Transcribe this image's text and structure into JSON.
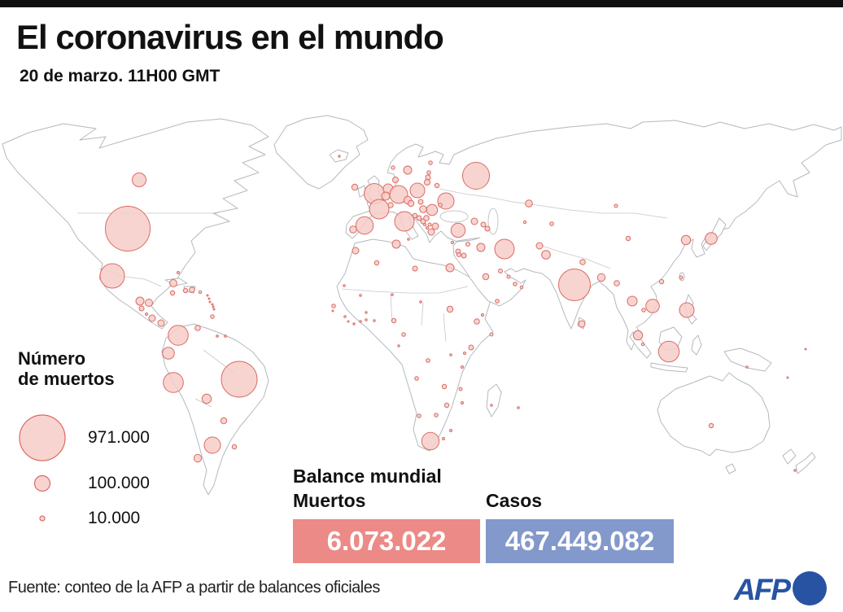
{
  "meta": {
    "bg": "#ffffff",
    "top_bar_color": "#111111",
    "bubble_fill": "#f7cdc9",
    "bubble_stroke": "#da6b61",
    "map_stroke": "#b4b9be",
    "deaths_box_color": "#eb8a87",
    "cases_box_color": "#8398cb",
    "afp_blue": "#2853a3"
  },
  "header": {
    "title": "El coronavirus en el mundo",
    "subtitle": "20 de marzo. 11H00 GMT"
  },
  "legend": {
    "title_line1": "Número",
    "title_line2": "de muertos",
    "items": [
      {
        "label": "971.000",
        "r": 28
      },
      {
        "label": "100.000",
        "r": 9.5
      },
      {
        "label": "10.000",
        "r": 3
      }
    ]
  },
  "balance": {
    "title": "Balance mundial",
    "deaths_label": "Muertos",
    "cases_label": "Casos",
    "deaths_value": "6.073.022",
    "cases_value": "467.449.082"
  },
  "footer": {
    "source": "Fuente: conteo de la AFP a partir de balances oficiales",
    "logo_text": "AFP"
  },
  "chart_data": {
    "type": "scatter",
    "subtype": "proportional-symbol-world-map",
    "title": "El coronavirus en el mundo",
    "subtitle": "20 de marzo. 11H00 GMT",
    "size_legend": {
      "title": "Número de muertos",
      "entries": [
        {
          "value": 971000,
          "label": "971.000",
          "radius_px": 28
        },
        {
          "value": 100000,
          "label": "100.000",
          "radius_px": 9.5
        },
        {
          "value": 10000,
          "label": "10.000",
          "radius_px": 3
        }
      ]
    },
    "totals": {
      "deaths": "6.073.022",
      "cases": "467.449.082"
    },
    "points_columns": [
      "country",
      "x_px",
      "y_px",
      "radius_px"
    ],
    "points": [
      [
        "canada",
        171,
        221,
        8.5
      ],
      [
        "usa",
        157,
        281,
        27.5
      ],
      [
        "mexico",
        138,
        339,
        15
      ],
      [
        "guatemala",
        172,
        370,
        5
      ],
      [
        "honduras",
        183,
        372,
        4.5
      ],
      [
        "el-salvador",
        174,
        379,
        3
      ],
      [
        "nicaragua",
        180,
        386,
        1.5
      ],
      [
        "costa-rica",
        187,
        391,
        4
      ],
      [
        "panama",
        198,
        397,
        4
      ],
      [
        "bahamas",
        219,
        335,
        1.5
      ],
      [
        "cuba",
        213,
        348,
        4.5
      ],
      [
        "jamaica",
        212,
        360,
        2.7
      ],
      [
        "haiti",
        228,
        357,
        2.7
      ],
      [
        "dominican-republic",
        236,
        356,
        3.3
      ],
      [
        "puerto-rico",
        246,
        359,
        1.7
      ],
      [
        "antilles-1",
        255,
        363,
        1
      ],
      [
        "antilles-2",
        257,
        367,
        1
      ],
      [
        "antilles-3",
        258,
        371,
        1
      ],
      [
        "antilles-4",
        261,
        374,
        1
      ],
      [
        "antilles-5",
        262,
        377,
        1
      ],
      [
        "antilles-6",
        263,
        380,
        1
      ],
      [
        "trinidad-tobago",
        261,
        389,
        2.3
      ],
      [
        "venezuela",
        243,
        403,
        3.3
      ],
      [
        "colombia",
        219,
        412,
        12.3
      ],
      [
        "guyana",
        267,
        413,
        1.4
      ],
      [
        "suriname",
        277,
        413,
        1.4
      ],
      [
        "ecuador",
        207,
        434,
        7.3
      ],
      [
        "peru",
        213,
        470,
        12.3
      ],
      [
        "brazil",
        294,
        466,
        22
      ],
      [
        "bolivia",
        254,
        490,
        5.7
      ],
      [
        "paraguay",
        275,
        517,
        3.7
      ],
      [
        "argentina",
        261,
        547,
        10
      ],
      [
        "uruguay",
        288,
        549,
        2.7
      ],
      [
        "chile",
        243,
        563,
        4.7
      ],
      [
        "iceland",
        417,
        192,
        1.2
      ],
      [
        "ireland",
        436,
        230,
        3.7
      ],
      [
        "united-kingdom",
        460,
        238,
        12.5
      ],
      [
        "norway",
        483,
        206,
        2.2
      ],
      [
        "sweden",
        501,
        209,
        5
      ],
      [
        "finland",
        529,
        200,
        2.3
      ],
      [
        "estonia",
        527,
        212,
        2.3
      ],
      [
        "latvia",
        526,
        218,
        3
      ],
      [
        "lithuania",
        525,
        224,
        3.5
      ],
      [
        "denmark",
        486,
        221,
        3.5
      ],
      [
        "netherlands",
        477,
        232,
        6
      ],
      [
        "belgium",
        474,
        241,
        5
      ],
      [
        "germany",
        490,
        239,
        11
      ],
      [
        "poland",
        513,
        234,
        9
      ],
      [
        "belarus",
        537,
        228,
        2.7
      ],
      [
        "russia",
        585,
        216,
        16.5
      ],
      [
        "ukraine",
        548,
        247,
        10
      ],
      [
        "czechia",
        501,
        246,
        4.7
      ],
      [
        "slovakia",
        517,
        248,
        3
      ],
      [
        "austria",
        505,
        250,
        3.7
      ],
      [
        "switzerland",
        480,
        252,
        3.3
      ],
      [
        "france",
        466,
        257,
        12
      ],
      [
        "hungary",
        520,
        257,
        4.3
      ],
      [
        "moldova",
        541,
        252,
        2.3
      ],
      [
        "romania",
        531,
        258,
        6.7
      ],
      [
        "slovenia",
        510,
        265,
        2.7
      ],
      [
        "croatia",
        515,
        268,
        3
      ],
      [
        "bosnia",
        520,
        272,
        3
      ],
      [
        "serbia",
        524,
        268,
        3.3
      ],
      [
        "italy",
        497,
        272,
        12
      ],
      [
        "spain",
        448,
        277,
        10.7
      ],
      [
        "portugal",
        434,
        282,
        4.3
      ],
      [
        "montenegro",
        522,
        276,
        1.5
      ],
      [
        "north-macedonia",
        528,
        276,
        2
      ],
      [
        "albania",
        525,
        280,
        1.5
      ],
      [
        "bulgaria",
        535,
        278,
        4
      ],
      [
        "greece",
        530,
        285,
        4
      ],
      [
        "malta",
        502,
        294,
        1.3
      ],
      [
        "morocco",
        437,
        308,
        4
      ],
      [
        "algeria",
        463,
        323,
        2.7
      ],
      [
        "tunisia",
        487,
        300,
        5
      ],
      [
        "libya",
        510,
        330,
        3
      ],
      [
        "egypt",
        553,
        329,
        5
      ],
      [
        "turkey",
        563,
        283,
        8.7
      ],
      [
        "cyprus",
        556,
        298,
        1.5
      ],
      [
        "syria",
        575,
        300,
        2.5
      ],
      [
        "lebanon",
        563,
        309,
        3
      ],
      [
        "israel",
        564,
        313,
        2.5
      ],
      [
        "jordan",
        570,
        314,
        3
      ],
      [
        "iraq",
        591,
        304,
        5
      ],
      [
        "georgia",
        583,
        272,
        4
      ],
      [
        "armenia",
        594,
        276,
        3
      ],
      [
        "azerbaijan",
        599,
        281,
        3
      ],
      [
        "iran",
        620,
        306,
        12
      ],
      [
        "kuwait",
        615,
        333,
        2.5
      ],
      [
        "saudi-arabia",
        597,
        340,
        3.7
      ],
      [
        "bahrain",
        625,
        340,
        2
      ],
      [
        "uae",
        633,
        349,
        2.3
      ],
      [
        "oman",
        641,
        353,
        1.8
      ],
      [
        "yemen",
        611,
        370,
        2.3
      ],
      [
        "kazakhstan",
        650,
        250,
        4.3
      ],
      [
        "uzbekistan",
        645,
        273,
        1.7
      ],
      [
        "kyrgyzstan",
        678,
        275,
        2.3
      ],
      [
        "mongolia",
        757,
        253,
        2
      ],
      [
        "china",
        772,
        293,
        2.7
      ],
      [
        "afghanistan",
        663,
        302,
        4
      ],
      [
        "pakistan",
        671,
        313,
        5.3
      ],
      [
        "nepal",
        716,
        322,
        3.3
      ],
      [
        "india",
        706,
        350,
        19.5
      ],
      [
        "bangladesh",
        739,
        341,
        4.7
      ],
      [
        "myanmar",
        758,
        348,
        3.3
      ],
      [
        "sri-lanka",
        715,
        398,
        4
      ],
      [
        "thailand",
        777,
        370,
        6
      ],
      [
        "vietnam",
        802,
        376,
        8.3
      ],
      [
        "cambodia",
        791,
        381,
        2.3
      ],
      [
        "south-korea",
        843,
        295,
        5.7
      ],
      [
        "japan",
        874,
        293,
        7.3
      ],
      [
        "taiwan",
        837,
        341,
        2
      ],
      [
        "hong-kong",
        813,
        346,
        2.7
      ],
      [
        "philippines",
        844,
        381,
        9
      ],
      [
        "malaysia",
        784,
        412,
        5.7
      ],
      [
        "singapore",
        790,
        423,
        1.7
      ],
      [
        "indonesia",
        822,
        432,
        12.7
      ],
      [
        "papua-new-guinea",
        918,
        451,
        1.3
      ],
      [
        "solomon-islands",
        968,
        464,
        1
      ],
      [
        "fiji",
        990,
        429,
        1
      ],
      [
        "australia",
        874,
        523,
        2.7
      ],
      [
        "new-zealand",
        977,
        578,
        1.3
      ],
      [
        "mauritania",
        423,
        351,
        1.3
      ],
      [
        "senegal",
        410,
        376,
        2.3
      ],
      [
        "gambia",
        409,
        382,
        1
      ],
      [
        "guinea",
        424,
        389,
        1.3
      ],
      [
        "sierra-leone",
        428,
        395,
        1
      ],
      [
        "liberia",
        435,
        398,
        1.2
      ],
      [
        "ivory-coast",
        443,
        395,
        1.3
      ],
      [
        "ghana",
        450,
        393,
        1.3
      ],
      [
        "burkina-faso",
        450,
        384,
        1.2
      ],
      [
        "togo-benin",
        460,
        394,
        1.2
      ],
      [
        "mali",
        443,
        363,
        1.3
      ],
      [
        "niger",
        482,
        362,
        1.3
      ],
      [
        "chad",
        517,
        371,
        1.3
      ],
      [
        "nigeria",
        484,
        394,
        2.7
      ],
      [
        "cameroon",
        496,
        411,
        2.3
      ],
      [
        "gabon",
        490,
        425,
        1.2
      ],
      [
        "sudan",
        553,
        380,
        3.7
      ],
      [
        "eritrea",
        593,
        387,
        1.5
      ],
      [
        "ethiopia",
        586,
        395,
        3.3
      ],
      [
        "somalia",
        604,
        411,
        2
      ],
      [
        "uganda",
        579,
        427,
        3
      ],
      [
        "kenya",
        571,
        434,
        1.5
      ],
      [
        "rwanda",
        554,
        436,
        1.3
      ],
      [
        "drc",
        526,
        443,
        2.3
      ],
      [
        "tanzania",
        568,
        451,
        1.5
      ],
      [
        "angola",
        512,
        465,
        2.3
      ],
      [
        "zambia",
        546,
        475,
        2.7
      ],
      [
        "malawi",
        566,
        478,
        2
      ],
      [
        "mozambique",
        568,
        495,
        1.5
      ],
      [
        "zimbabwe",
        549,
        498,
        2.7
      ],
      [
        "namibia",
        515,
        511,
        2.3
      ],
      [
        "botswana",
        536,
        510,
        2.3
      ],
      [
        "madagascar",
        604,
        498,
        1.3
      ],
      [
        "mauritius",
        637,
        501,
        1.3
      ],
      [
        "south-africa",
        529,
        542,
        10.7
      ],
      [
        "eswatini",
        554,
        529,
        1.5
      ],
      [
        "lesotho",
        545,
        539,
        1.5
      ]
    ]
  }
}
